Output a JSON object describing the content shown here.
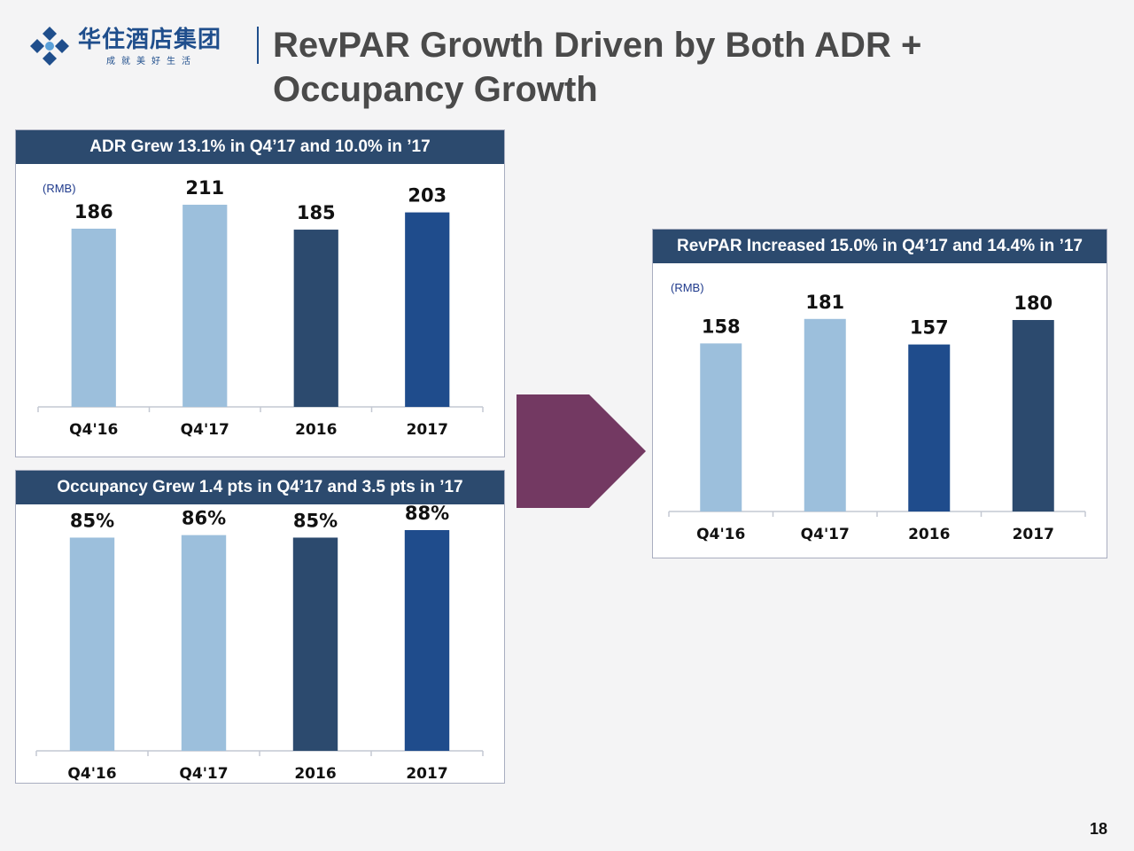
{
  "header": {
    "logo_cn": "华住酒店集团",
    "logo_tagline": "成就美好生活",
    "title": "RevPAR Growth Driven by Both ADR + Occupancy Growth",
    "title_line1": "RevPAR Growth Driven by Both ADR +",
    "title_line2": "Occupancy Growth"
  },
  "colors": {
    "light": "#9cbfdc",
    "dark": "#2c4a6e",
    "mid": "#1f4c8c",
    "arrow": "#733962",
    "header_bg": "#2c4a6e"
  },
  "chart_data": [
    {
      "id": "adr",
      "type": "bar",
      "title": "ADR Grew 13.1% in Q4’17 and 10.0% in ’17",
      "unit": "(RMB)",
      "categories": [
        "Q4'16",
        "Q4'17",
        "2016",
        "2017"
      ],
      "values": [
        186,
        211,
        185,
        203
      ],
      "data_labels": [
        "186",
        "211",
        "185",
        "203"
      ],
      "bar_colors": [
        "#9cbfdc",
        "#9cbfdc",
        "#2c4a6e",
        "#1f4c8c"
      ],
      "ylim": [
        0,
        235
      ],
      "grid": false
    },
    {
      "id": "occupancy",
      "type": "bar",
      "title": "Occupancy Grew 1.4 pts in Q4’17 and 3.5 pts in ’17",
      "unit": "",
      "categories": [
        "Q4'16",
        "Q4'17",
        "2016",
        "2017"
      ],
      "values": [
        85,
        86,
        85,
        88
      ],
      "data_labels": [
        "85%",
        "86%",
        "85%",
        "88%"
      ],
      "bar_colors": [
        "#9cbfdc",
        "#9cbfdc",
        "#2c4a6e",
        "#1f4c8c"
      ],
      "ylim": [
        0,
        94
      ],
      "grid": false
    },
    {
      "id": "revpar",
      "type": "bar",
      "title": "RevPAR Increased 15.0% in Q4’17 and 14.4% in ’17",
      "unit": "(RMB)",
      "categories": [
        "Q4'16",
        "Q4'17",
        "2016",
        "2017"
      ],
      "values": [
        158,
        181,
        157,
        180
      ],
      "data_labels": [
        "158",
        "181",
        "157",
        "180"
      ],
      "bar_colors": [
        "#9cbfdc",
        "#9cbfdc",
        "#1f4c8c",
        "#2c4a6e"
      ],
      "ylim": [
        0,
        190
      ],
      "grid": false
    }
  ],
  "page_number": "18"
}
